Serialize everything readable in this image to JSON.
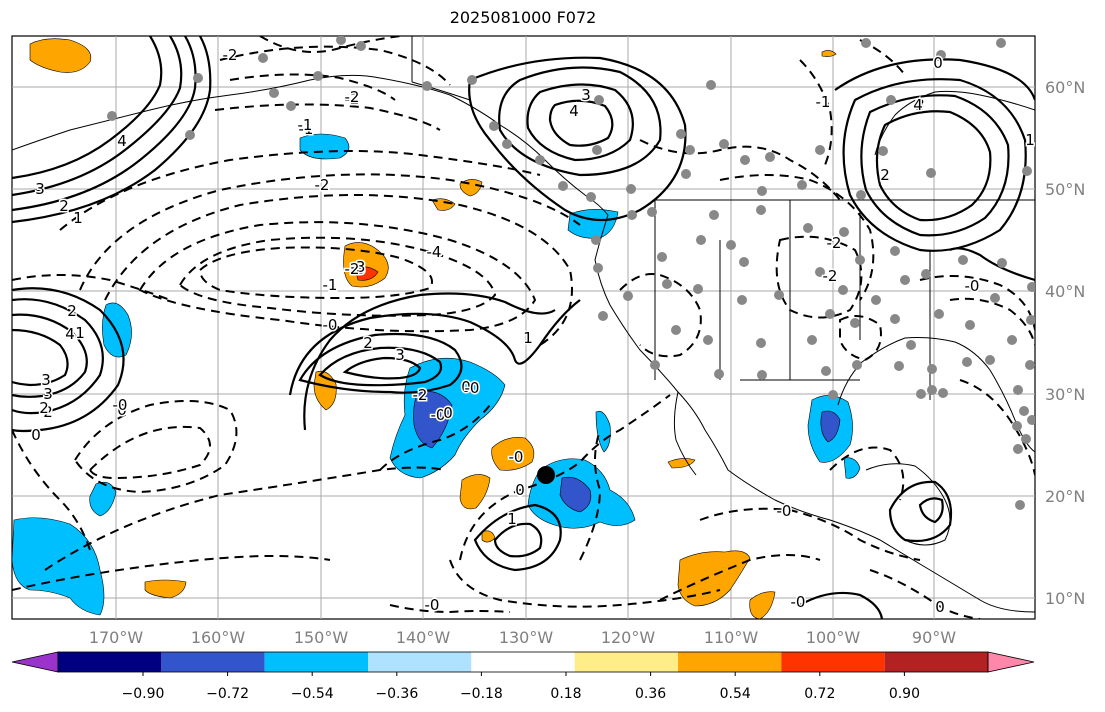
{
  "title": "2025081000 F072",
  "lat_labels": [
    "60°N",
    "50°N",
    "40°N",
    "30°N",
    "20°N",
    "10°N"
  ],
  "lon_labels": [
    "170°W",
    "160°W",
    "150°W",
    "140°W",
    "130°W",
    "120°W",
    "110°W",
    "100°W",
    "90°W"
  ],
  "colorbar": {
    "ticks": [
      "−0.90",
      "−0.72",
      "−0.54",
      "−0.36",
      "−0.18",
      "0.18",
      "0.36",
      "0.54",
      "0.72",
      "0.90"
    ],
    "colors": [
      "#9933cc",
      "#000080",
      "#3355cc",
      "#00bfff",
      "#aee2ff",
      "#ffffff",
      "#ffee88",
      "#ffa500",
      "#ff3300",
      "#b22222",
      "#ff88aa"
    ]
  },
  "contour_labels": [
    "3",
    "2",
    "1",
    "4",
    "3",
    "2",
    "0",
    "2",
    "1",
    "4",
    "3",
    "2",
    "0",
    "-1",
    "-2",
    "-3",
    "-4",
    "-2",
    "-0",
    "0",
    "-0",
    "3",
    "2",
    "1",
    "-0",
    "0",
    "-0",
    "0",
    "-0",
    "1",
    "-1",
    "3",
    "4",
    "-3",
    "-2",
    "-2",
    "-2",
    "-1",
    "-2",
    "-0",
    "0",
    "1",
    "2",
    "3",
    "4",
    "-2",
    "-1",
    "-2",
    "-0",
    "-0",
    "0",
    "-0"
  ],
  "colors": {
    "positive_shade": "#ffa500",
    "negative_shade": "#00bfff",
    "station_dot": "#888888",
    "storm_marker": "#000000"
  }
}
